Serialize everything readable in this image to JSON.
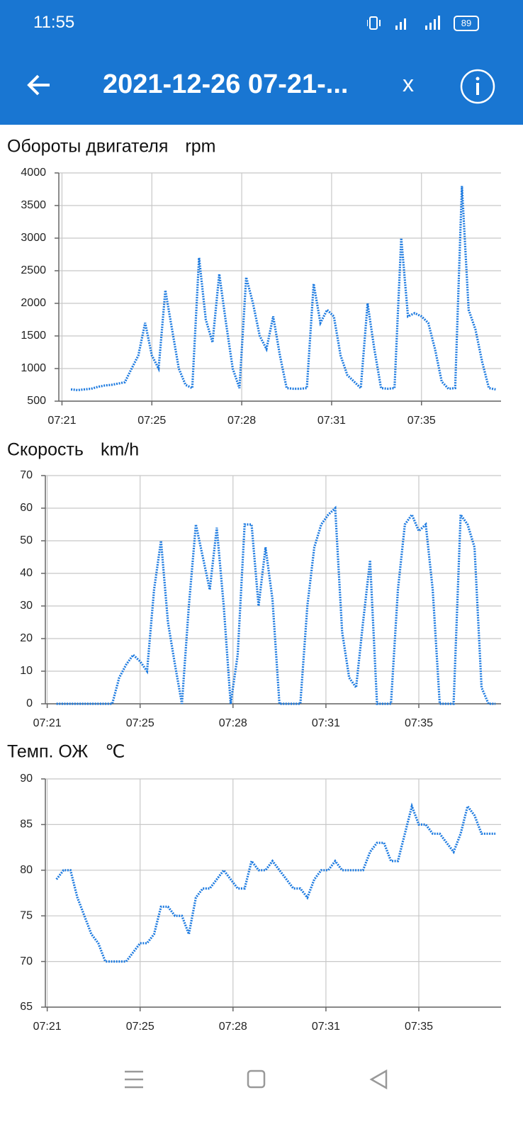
{
  "status_bar": {
    "time": "11:55",
    "battery": "89"
  },
  "app_bar": {
    "title": "2021-12-26 07-21-...",
    "close": "x"
  },
  "charts": [
    {
      "type": "line",
      "title": "Обороты двигателя",
      "unit": "rpm",
      "color": "#1e7be0",
      "grid": true,
      "xlim": [
        441.55,
        457.95
      ],
      "xticks": [
        {
          "value": 441.667,
          "label": "07:21"
        },
        {
          "value": 445,
          "label": "07:25"
        },
        {
          "value": 448.333,
          "label": "07:28"
        },
        {
          "value": 451.667,
          "label": "07:31"
        },
        {
          "value": 455,
          "label": "07:35"
        }
      ],
      "ylim": [
        500,
        4000
      ],
      "yticks": [
        500,
        1000,
        1500,
        2000,
        2500,
        3000,
        3500,
        4000
      ],
      "x": [
        442,
        442.25,
        442.5,
        442.75,
        443,
        443.25,
        443.5,
        443.75,
        444,
        444.25,
        444.5,
        444.75,
        445,
        445.25,
        445.5,
        445.75,
        446,
        446.25,
        446.5,
        446.75,
        447,
        447.25,
        447.5,
        447.75,
        448,
        448.25,
        448.5,
        448.75,
        449,
        449.25,
        449.5,
        449.75,
        450,
        450.25,
        450.5,
        450.75,
        451,
        451.25,
        451.5,
        451.75,
        452,
        452.25,
        452.5,
        452.75,
        453,
        453.25,
        453.5,
        453.75,
        454,
        454.25,
        454.5,
        454.75,
        455,
        455.25,
        455.5,
        455.75,
        456,
        456.25,
        456.5,
        456.75,
        457,
        457.25,
        457.5,
        457.75
      ],
      "values": [
        680,
        670,
        680,
        690,
        720,
        740,
        750,
        770,
        790,
        1000,
        1200,
        1700,
        1200,
        1000,
        2200,
        1600,
        1000,
        750,
        700,
        2700,
        1750,
        1400,
        2450,
        1700,
        1000,
        700,
        2400,
        2000,
        1500,
        1300,
        1800,
        1200,
        700,
        690,
        690,
        700,
        2300,
        1700,
        1900,
        1800,
        1200,
        900,
        800,
        700,
        2000,
        1300,
        700,
        690,
        700,
        3000,
        1800,
        1850,
        1800,
        1700,
        1300,
        800,
        690,
        700,
        3800,
        1900,
        1600,
        1100,
        700,
        680
      ]
    },
    {
      "type": "line",
      "title": "Скорость",
      "unit": "km/h",
      "color": "#1e7be0",
      "grid": true,
      "xlim": [
        441.6,
        457.95
      ],
      "xticks": [
        {
          "value": 441.667,
          "label": "07:21"
        },
        {
          "value": 445,
          "label": "07:25"
        },
        {
          "value": 448.333,
          "label": "07:28"
        },
        {
          "value": 451.667,
          "label": "07:31"
        },
        {
          "value": 455,
          "label": "07:35"
        }
      ],
      "ylim": [
        0,
        70
      ],
      "yticks": [
        0,
        10,
        20,
        30,
        40,
        50,
        60,
        70
      ],
      "x": [
        442,
        442.25,
        442.5,
        442.75,
        443,
        443.25,
        443.5,
        443.75,
        444,
        444.25,
        444.5,
        444.75,
        445,
        445.25,
        445.5,
        445.75,
        446,
        446.25,
        446.5,
        446.75,
        447,
        447.25,
        447.5,
        447.75,
        448,
        448.25,
        448.5,
        448.75,
        449,
        449.25,
        449.5,
        449.75,
        450,
        450.25,
        450.5,
        450.75,
        451,
        451.25,
        451.5,
        451.75,
        452,
        452.25,
        452.5,
        452.75,
        453,
        453.25,
        453.5,
        453.75,
        454,
        454.25,
        454.5,
        454.75,
        455,
        455.25,
        455.5,
        455.75,
        456,
        456.25,
        456.5,
        456.75,
        457,
        457.25,
        457.5,
        457.75
      ],
      "values": [
        0,
        0,
        0,
        0,
        0,
        0,
        0,
        0,
        0,
        8,
        12,
        15,
        13,
        10,
        35,
        50,
        25,
        12,
        0,
        30,
        55,
        45,
        35,
        54,
        30,
        0,
        15,
        55,
        55,
        30,
        48,
        32,
        0,
        0,
        0,
        0,
        30,
        48,
        55,
        58,
        60,
        22,
        8,
        5,
        25,
        44,
        0,
        0,
        0,
        35,
        55,
        58,
        53,
        55,
        35,
        0,
        0,
        0,
        58,
        55,
        48,
        5,
        0,
        0
      ]
    },
    {
      "type": "line",
      "title": "Темп. ОЖ",
      "unit": "℃",
      "color": "#1e7be0",
      "grid": true,
      "xlim": [
        441.6,
        457.95
      ],
      "xticks": [
        {
          "value": 441.667,
          "label": "07:21"
        },
        {
          "value": 445,
          "label": "07:25"
        },
        {
          "value": 448.333,
          "label": "07:28"
        },
        {
          "value": 451.667,
          "label": "07:31"
        },
        {
          "value": 455,
          "label": "07:35"
        }
      ],
      "ylim": [
        65,
        90
      ],
      "yticks": [
        65,
        70,
        75,
        80,
        85,
        90
      ],
      "x": [
        442,
        442.25,
        442.5,
        442.75,
        443,
        443.25,
        443.5,
        443.75,
        444,
        444.25,
        444.5,
        444.75,
        445,
        445.25,
        445.5,
        445.75,
        446,
        446.25,
        446.5,
        446.75,
        447,
        447.25,
        447.5,
        447.75,
        448,
        448.25,
        448.5,
        448.75,
        449,
        449.25,
        449.5,
        449.75,
        450,
        450.25,
        450.5,
        450.75,
        451,
        451.25,
        451.5,
        451.75,
        452,
        452.25,
        452.5,
        452.75,
        453,
        453.25,
        453.5,
        453.75,
        454,
        454.25,
        454.5,
        454.75,
        455,
        455.25,
        455.5,
        455.75,
        456,
        456.25,
        456.5,
        456.75,
        457,
        457.25,
        457.5,
        457.75
      ],
      "values": [
        79,
        80,
        80,
        77,
        75,
        73,
        72,
        70,
        70,
        70,
        70,
        71,
        72,
        72,
        73,
        76,
        76,
        75,
        75,
        73,
        77,
        78,
        78,
        79,
        80,
        79,
        78,
        78,
        81,
        80,
        80,
        81,
        80,
        79,
        78,
        78,
        77,
        79,
        80,
        80,
        81,
        80,
        80,
        80,
        80,
        82,
        83,
        83,
        81,
        81,
        84,
        87,
        85,
        85,
        84,
        84,
        83,
        82,
        84,
        87,
        86,
        84,
        84,
        84
      ]
    }
  ]
}
